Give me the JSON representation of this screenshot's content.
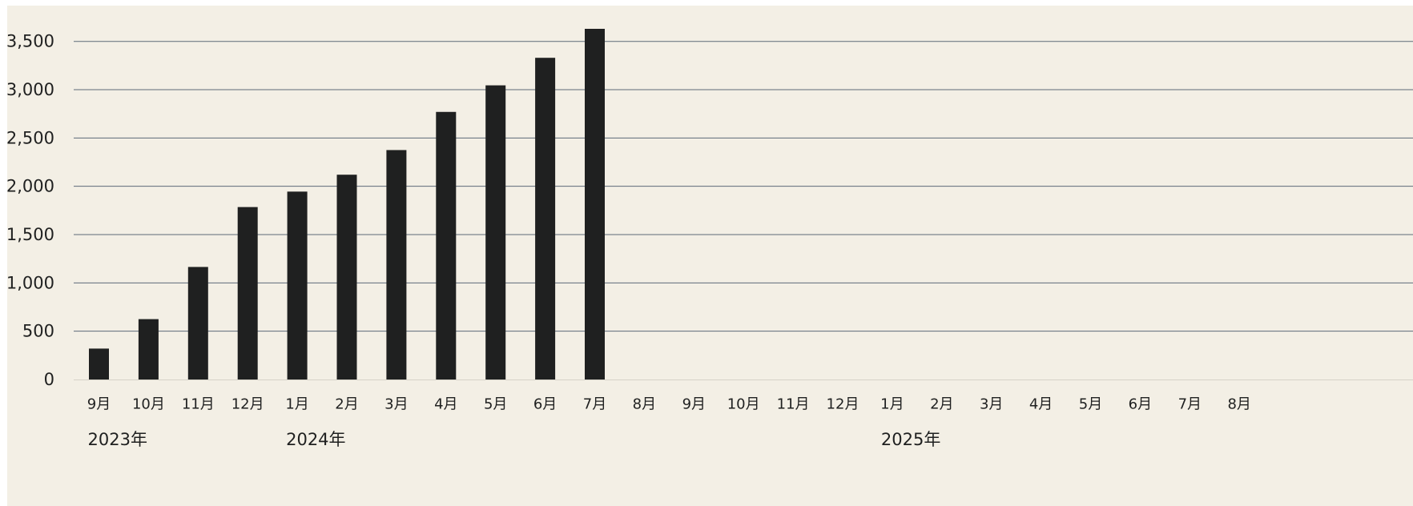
{
  "chart_data": {
    "type": "bar",
    "title": "",
    "xlabel": "",
    "ylabel": "",
    "ylim": [
      0,
      3700
    ],
    "yticks": [
      0,
      500,
      1000,
      1500,
      2000,
      2500,
      3000,
      3500
    ],
    "ytick_labels": [
      "0",
      "500",
      "1,000",
      "1,500",
      "2,000",
      "2,500",
      "3,000",
      "3,500"
    ],
    "grid": true,
    "legend": "none",
    "categories": [
      "9月",
      "10月",
      "11月",
      "12月",
      "1月",
      "2月",
      "3月",
      "4月",
      "5月",
      "6月",
      "7月",
      "8月",
      "9月",
      "10月",
      "11月",
      "12月",
      "1月",
      "2月",
      "3月",
      "4月",
      "5月",
      "6月",
      "7月",
      "8月"
    ],
    "values": [
      320,
      625,
      1165,
      1785,
      1945,
      2120,
      2375,
      2770,
      3045,
      3330,
      3630,
      null,
      null,
      null,
      null,
      null,
      null,
      null,
      null,
      null,
      null,
      null,
      null,
      null
    ],
    "year_labels": [
      {
        "label": "2023年",
        "start_index": 0
      },
      {
        "label": "2024年",
        "start_index": 4
      },
      {
        "label": "2025年",
        "start_index": 16
      }
    ],
    "colors": {
      "bar": "#1f2020",
      "grid": "#5c6a78",
      "background": "#f3efe5",
      "text": "#1f2020"
    }
  }
}
